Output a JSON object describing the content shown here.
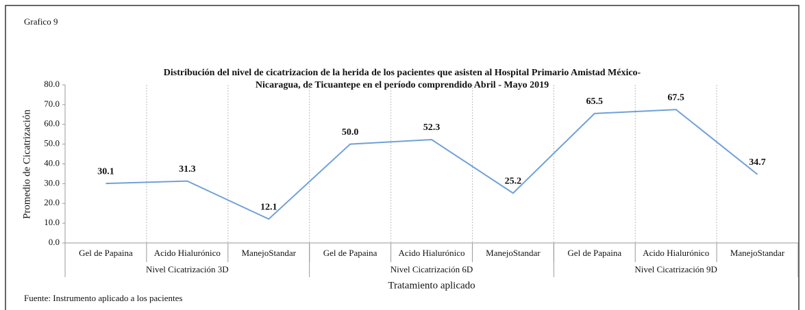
{
  "chart_data": {
    "type": "line",
    "caption": "Grafico 9",
    "title_lines": [
      "Distribución del nivel de cicatrizacion de la herida de los pacientes que asisten al Hospital Primario Amistad México-",
      "Nicaragua, de Ticuantepe en el período comprendido Abril - Mayo 2019"
    ],
    "ylabel": "Promedio de Cicatrización",
    "xlabel": "Tratamiento aplicado",
    "source": "Fuente: Instrumento aplicado a los pacientes",
    "categories": [
      "Gel de Papaina",
      "Acido Hialurónico",
      "ManejoStandar",
      "Gel de Papaina",
      "Acido Hialurónico",
      "ManejoStandar",
      "Gel de Papaina",
      "Acido Hialurónico",
      "ManejoStandar"
    ],
    "groups": [
      "Nivel Cicatrización 3D",
      "Nivel Cicatrización 6D",
      "Nivel Cicatrización 9D"
    ],
    "series": [
      {
        "color": "#6fa0d8",
        "values": [
          30.1,
          31.3,
          12.1,
          50.0,
          52.3,
          25.2,
          65.5,
          67.5,
          34.7
        ],
        "value_labels": [
          "30.1",
          "31.3",
          "12.1",
          "50.0",
          "52.3",
          "25.2",
          "65.5",
          "67.5",
          "34.7"
        ]
      }
    ],
    "ylim": [
      0,
      80
    ],
    "yticks": [
      {
        "value": 0,
        "label": "0.0"
      },
      {
        "value": 10,
        "label": "10.0"
      },
      {
        "value": 20,
        "label": "20.0"
      },
      {
        "value": 30,
        "label": "30.0"
      },
      {
        "value": 40,
        "label": "40.0"
      },
      {
        "value": 50,
        "label": "50.0"
      },
      {
        "value": 60,
        "label": "60.0"
      },
      {
        "value": 70,
        "label": "70.0"
      },
      {
        "value": 80,
        "label": "80.0"
      }
    ],
    "grid": false
  }
}
